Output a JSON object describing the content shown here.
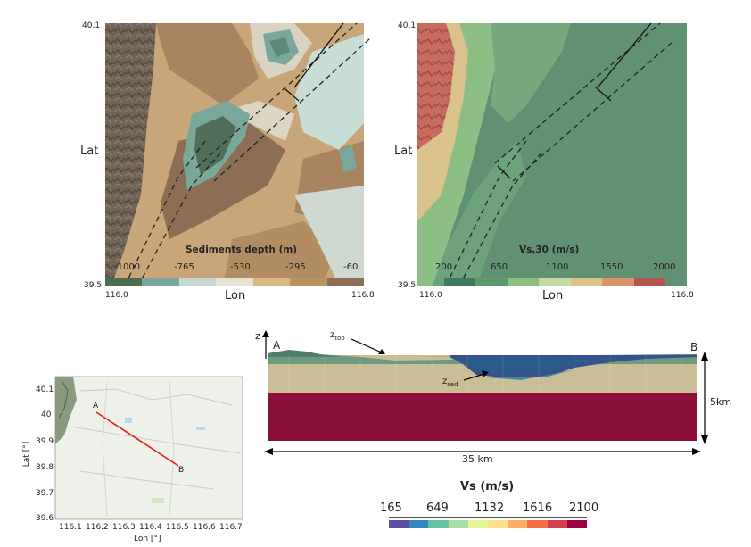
{
  "map_sediments": {
    "lat_top": "40.1",
    "lat_bottom": "39.5",
    "lon_left": "116.0",
    "lon_right": "116.8",
    "lat_label": "Lat",
    "lon_label": "Lon",
    "colorbar_title": "Sediments depth (m)",
    "colorbar_ticks": [
      "-1000",
      "-765",
      "-530",
      "-295",
      "-60"
    ],
    "colorbar_colors": [
      "#4e6b4f",
      "#7aa79c",
      "#c7d7d2",
      "#e6e2cf",
      "#d9b884",
      "#b9945f",
      "#8c6e55"
    ]
  },
  "map_vs30": {
    "lat_top": "40.1",
    "lat_bottom": "39.5",
    "lon_left": "116.0",
    "lon_right": "116.8",
    "lat_label": "Lat",
    "lon_label": "Lon",
    "colorbar_title": "Vs,30 (m/s)",
    "colorbar_ticks": [
      "200",
      "650",
      "1100",
      "1550",
      "2000"
    ],
    "colorbar_colors": [
      "#3f7a5e",
      "#5f9a6e",
      "#8dbf84",
      "#c6d9a2",
      "#d9c28b",
      "#d9936d",
      "#b2554f"
    ]
  },
  "inset_map": {
    "y_label": "Lat [°]",
    "x_label": "Lon [°]",
    "y_ticks": [
      "40.1",
      "40",
      "39.9",
      "39.8",
      "39.7",
      "39.6"
    ],
    "x_ticks": [
      "116.1",
      "116.2",
      "116.3",
      "116.4",
      "116.5",
      "116.6",
      "116.7"
    ],
    "point_a": "A",
    "point_b": "B"
  },
  "cross_section": {
    "z_label": "z",
    "point_a": "A",
    "point_b": "B",
    "ztop_label_main": "z",
    "ztop_label_sub": "top",
    "zsed_label_main": "z",
    "zsed_label_sub": "sed",
    "depth_label": "5km",
    "width_label": "35 km"
  },
  "vs_colorbar": {
    "title": "Vs (m/s)",
    "ticks": [
      "165",
      "649",
      "1132",
      "1616",
      "2100"
    ],
    "colors": [
      "#5e4fa2",
      "#3288bd",
      "#66c2a5",
      "#abdda4",
      "#e6f598",
      "#fee08b",
      "#fdae61",
      "#f46d43",
      "#d53e4f",
      "#9e0142"
    ]
  }
}
